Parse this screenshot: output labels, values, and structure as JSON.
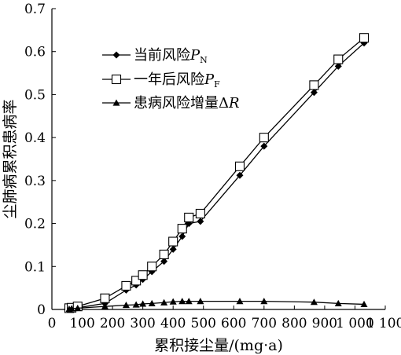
{
  "chart_data": {
    "type": "line",
    "xlabel": "累积接尘量/(mg·a)",
    "ylabel": "尘肺病累积患病率",
    "xlim": [
      0,
      1100
    ],
    "ylim": [
      0,
      0.7
    ],
    "x_ticks": [
      "0",
      "100",
      "200",
      "300",
      "400",
      "500",
      "600",
      "700",
      "800",
      "900",
      "1 000",
      "1 100"
    ],
    "x_tick_values": [
      0,
      100,
      200,
      300,
      400,
      500,
      600,
      700,
      800,
      900,
      1000,
      1100
    ],
    "y_ticks": [
      "0",
      "0.1",
      "0.2",
      "0.3",
      "0.4",
      "0.5",
      "0.6",
      "0.7"
    ],
    "y_tick_values": [
      0,
      0.1,
      0.2,
      0.3,
      0.4,
      0.5,
      0.6,
      0.7
    ],
    "legend_position": "top-left",
    "grid": false,
    "series": [
      {
        "name": "当前风险",
        "symbol_main": "P",
        "symbol_sub": "N",
        "marker": "filled-diamond",
        "x": [
          57,
          65,
          85,
          175,
          245,
          278,
          300,
          330,
          370,
          400,
          430,
          452,
          490,
          620,
          700,
          865,
          945,
          1030
        ],
        "y": [
          0.001,
          0.002,
          0.004,
          0.014,
          0.045,
          0.057,
          0.07,
          0.088,
          0.112,
          0.14,
          0.17,
          0.2,
          0.205,
          0.312,
          0.38,
          0.505,
          0.566,
          0.62
        ]
      },
      {
        "name": "一年后风险",
        "symbol_main": "P",
        "symbol_sub": "F",
        "marker": "open-square",
        "x": [
          57,
          65,
          85,
          175,
          245,
          278,
          300,
          330,
          370,
          400,
          430,
          452,
          490,
          620,
          700,
          865,
          945,
          1030
        ],
        "y": [
          0.003,
          0.004,
          0.007,
          0.026,
          0.055,
          0.067,
          0.08,
          0.1,
          0.128,
          0.158,
          0.188,
          0.214,
          0.223,
          0.333,
          0.4,
          0.522,
          0.582,
          0.632
        ]
      },
      {
        "name": "患病风险增量",
        "symbol_main": "R",
        "symbol_prefix": "Δ",
        "marker": "filled-triangle",
        "x": [
          57,
          65,
          85,
          175,
          245,
          278,
          300,
          330,
          370,
          400,
          430,
          452,
          490,
          620,
          700,
          865,
          945,
          1030
        ],
        "y": [
          0.001,
          0.002,
          0.003,
          0.007,
          0.01,
          0.011,
          0.013,
          0.014,
          0.016,
          0.018,
          0.019,
          0.019,
          0.019,
          0.019,
          0.019,
          0.017,
          0.014,
          0.012
        ]
      }
    ]
  }
}
